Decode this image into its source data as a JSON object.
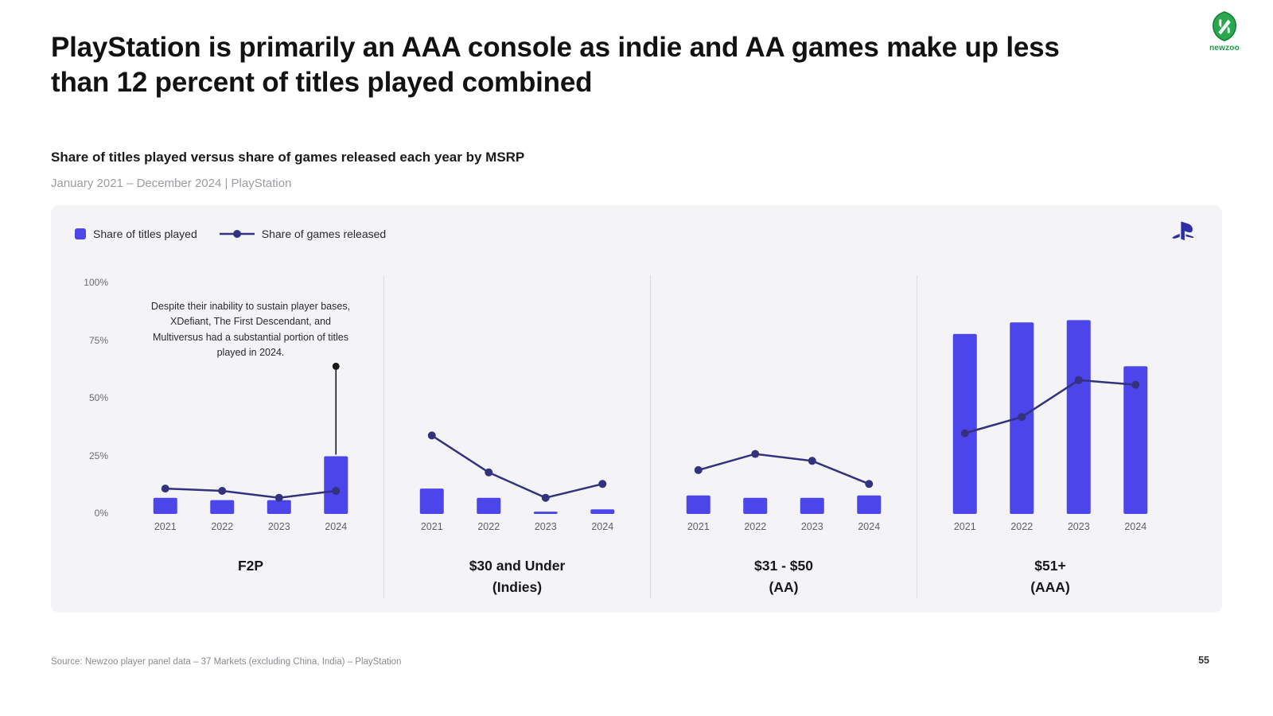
{
  "slide": {
    "title": "PlayStation is primarily an AAA console as indie and AA games make up less than 12 percent of titles played combined",
    "subtitle": "Share of titles played versus share of games released each year by MSRP",
    "period": "January 2021 – December 2024 | PlayStation",
    "source": "Source: Newzoo player panel data – 37 Markets (excluding China, India) – PlayStation",
    "page_number": "55",
    "brand": "newzoo"
  },
  "legend": {
    "bar_label": "Share of titles played",
    "line_label": "Share of games released"
  },
  "colors": {
    "bar": "#4b45ea",
    "line": "#32327f",
    "annotation": "#1a1a1a",
    "axis_text": "#6a6a72",
    "year_text": "#5f5f66"
  },
  "chart_data": {
    "type": "bar",
    "categories": [
      "2021",
      "2022",
      "2023",
      "2024"
    ],
    "y_ticks": [
      "100%",
      "75%",
      "50%",
      "25%",
      "0%"
    ],
    "ylim": [
      0,
      100
    ],
    "legend_position": "top-left",
    "grid": false,
    "panels": [
      {
        "label": "F2P",
        "label2": "",
        "bars": [
          7,
          6,
          6,
          25
        ],
        "line": [
          11,
          10,
          7,
          10
        ],
        "annotation": {
          "text": "Despite their inability to sustain player bases, XDefiant, The First Descendant, and Multiversus had a substantial portion of titles played in 2024.",
          "target_year": "2024",
          "dot_value": 64
        }
      },
      {
        "label": "$30 and Under",
        "label2": "(Indies)",
        "bars": [
          11,
          7,
          1,
          2
        ],
        "line": [
          34,
          18,
          7,
          13
        ]
      },
      {
        "label": "$31 - $50",
        "label2": "(AA)",
        "bars": [
          8,
          7,
          7,
          8
        ],
        "line": [
          19,
          26,
          23,
          13
        ]
      },
      {
        "label": "$51+",
        "label2": "(AAA)",
        "bars": [
          78,
          83,
          84,
          64
        ],
        "line": [
          35,
          42,
          58,
          56
        ]
      }
    ]
  }
}
